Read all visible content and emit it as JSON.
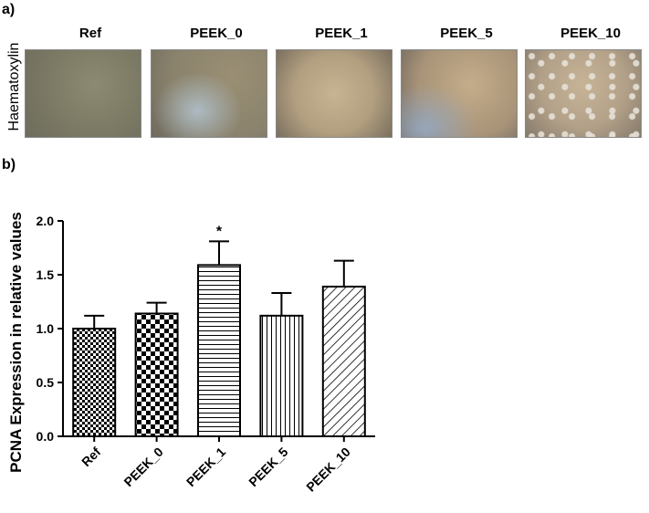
{
  "panels": {
    "a_label": "a)",
    "b_label": "b)"
  },
  "photos": {
    "row_label": "Haematoxylin",
    "labels": [
      "Ref",
      "PEEK_0",
      "PEEK_1",
      "PEEK_5",
      "PEEK_10"
    ]
  },
  "chart_data": {
    "type": "bar",
    "categories": [
      "Ref",
      "PEEK_0",
      "PEEK_1",
      "PEEK_5",
      "PEEK_10"
    ],
    "values": [
      1.0,
      1.14,
      1.59,
      1.12,
      1.39
    ],
    "errors": [
      0.12,
      0.1,
      0.22,
      0.21,
      0.24
    ],
    "annotations": [
      "",
      "",
      "*",
      "",
      ""
    ],
    "patterns": [
      "checker-small",
      "checker-large",
      "horizontal-lines",
      "vertical-lines",
      "diagonal-lines"
    ],
    "ylabel": "PCNA Expression in relative values",
    "xlabel": "",
    "title": "",
    "ylim": [
      0,
      2.0
    ],
    "yticks": [
      "0.0",
      "0.5",
      "1.0",
      "1.5",
      "2.0"
    ],
    "grid": false
  }
}
